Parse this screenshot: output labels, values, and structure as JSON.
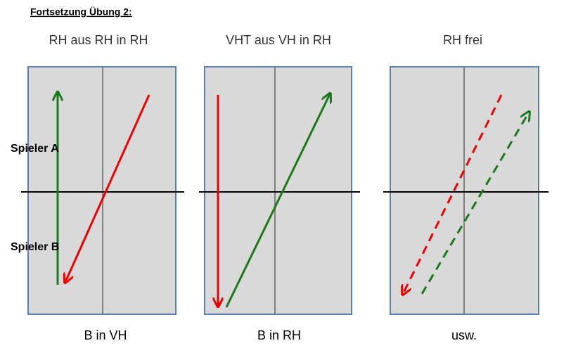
{
  "header": {
    "title": "Fortsetzung Übung 2:"
  },
  "players": {
    "a": "Spieler A",
    "b": "Spieler B"
  },
  "panels": [
    {
      "title": "RH aus RH in RH",
      "footer": "B in VH"
    },
    {
      "title": "VHT aus VH in RH",
      "footer": "B in RH"
    },
    {
      "title": "RH frei",
      "footer": "usw."
    }
  ]
}
